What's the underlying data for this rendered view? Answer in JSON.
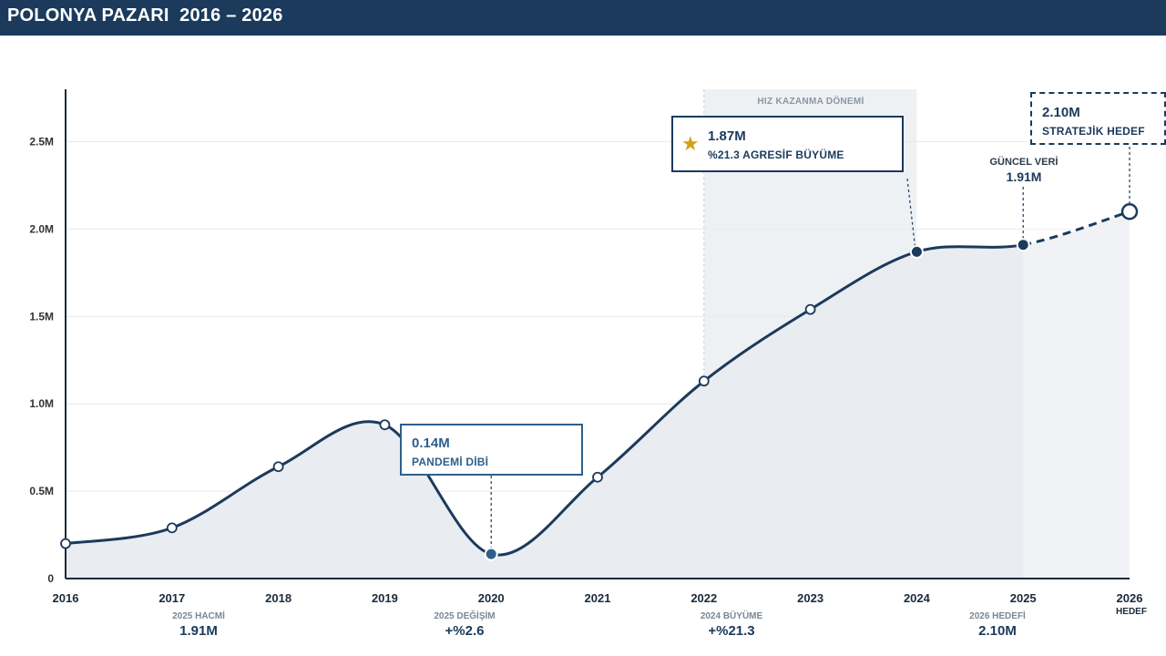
{
  "header": {
    "title": "POLONYA PAZARI  2016 – 2026"
  },
  "chart_data": {
    "type": "line",
    "title": "POLONYA PAZARI  2016 – 2026",
    "xlabel": "",
    "ylabel": "",
    "x": [
      "2016",
      "2017",
      "2018",
      "2019",
      "2020",
      "2021",
      "2022",
      "2023",
      "2024",
      "2025",
      "2026"
    ],
    "values": [
      0.2,
      0.29,
      0.64,
      0.88,
      0.14,
      0.58,
      1.13,
      1.54,
      1.87,
      1.91,
      2.1
    ],
    "ylim": [
      0,
      2.8
    ],
    "yticks": [
      0,
      0.5,
      1.0,
      1.5,
      2.0,
      2.5
    ],
    "ytick_labels": [
      "0",
      "0.5M",
      "1.0M",
      "1.5M",
      "2.0M",
      "2.5M"
    ],
    "grid": true,
    "projected_from": "2025",
    "highlight_band": {
      "from": "2022",
      "to": "2024",
      "label": "HIZ KAZANMA DÖNEMİ"
    },
    "colors": {
      "line": "#1b3a5c",
      "fill": "#e9ecf0",
      "band": "#eef1f4",
      "accent": "#2e5f8c",
      "star": "#d4a017"
    }
  },
  "callouts": {
    "pandemic": {
      "value": "0.14M",
      "label": "PANDEMİ DİBİ"
    },
    "growth": {
      "value": "1.87M",
      "label": "%21.3 AGRESİF BÜYÜME"
    },
    "target": {
      "value": "2.10M",
      "label": "STRATEJİK HEDEF"
    },
    "current": {
      "label": "GÜNCEL VERİ",
      "value": "1.91M"
    }
  },
  "hedef_tag": "HEDEF",
  "kpis": [
    {
      "label": "2025 HACMİ",
      "value": "1.91M"
    },
    {
      "label": "2025 DEĞİŞİM",
      "value": "+%2.6"
    },
    {
      "label": "2024 BÜYÜME",
      "value": "+%21.3"
    },
    {
      "label": "2026 HEDEFİ",
      "value": "2.10M"
    }
  ]
}
